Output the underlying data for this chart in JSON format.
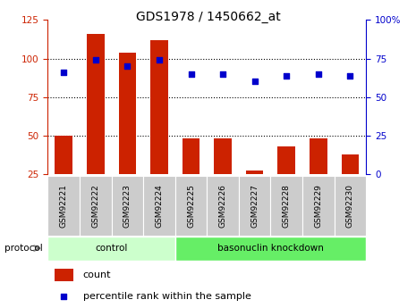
{
  "title": "GDS1978 / 1450662_at",
  "samples": [
    "GSM92221",
    "GSM92222",
    "GSM92223",
    "GSM92224",
    "GSM92225",
    "GSM92226",
    "GSM92227",
    "GSM92228",
    "GSM92229",
    "GSM92230"
  ],
  "counts": [
    50,
    116,
    104,
    112,
    48,
    48,
    27,
    43,
    48,
    38
  ],
  "percentile_ranks": [
    66,
    74,
    70,
    74,
    65,
    65,
    60,
    64,
    65,
    64
  ],
  "groups": [
    {
      "label": "control",
      "start": 0,
      "end": 4,
      "color": "#ccffcc"
    },
    {
      "label": "basonuclin knockdown",
      "start": 4,
      "end": 10,
      "color": "#66ee66"
    }
  ],
  "left_ylim": [
    25,
    125
  ],
  "right_ylim": [
    0,
    100
  ],
  "left_yticks": [
    25,
    50,
    75,
    100,
    125
  ],
  "right_yticks": [
    0,
    25,
    50,
    75,
    100
  ],
  "right_yticklabels": [
    "0",
    "25",
    "50",
    "75",
    "100%"
  ],
  "bar_color": "#cc2200",
  "dot_color": "#0000cc",
  "group1_color": "#ccffcc",
  "group2_color": "#66ee66",
  "label_bg_color": "#cccccc",
  "left_axis_color": "#cc2200",
  "right_axis_color": "#0000cc",
  "protocol_label": "protocol",
  "legend_count": "count",
  "legend_pct": "percentile rank within the sample"
}
